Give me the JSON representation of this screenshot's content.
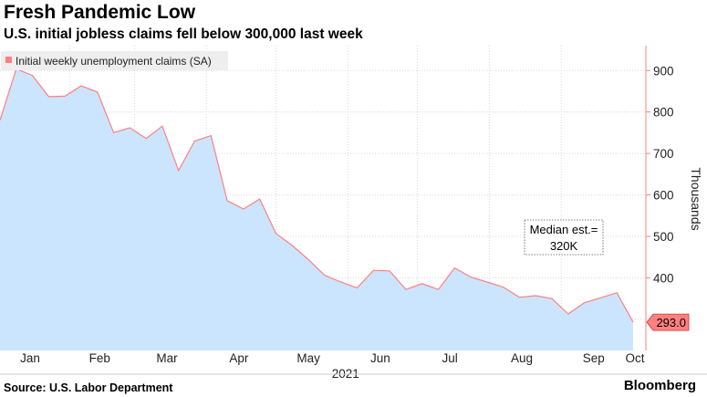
{
  "header": {
    "title": "Fresh Pandemic Low",
    "subtitle": "U.S. initial jobless claims fell below 300,000 last week"
  },
  "footer": {
    "source": "Source: U.S. Labor Department",
    "brand": "Bloomberg"
  },
  "chart_data": {
    "type": "area",
    "series": [
      {
        "name": "Initial weekly unemployment claims (SA)",
        "color": "#ff7f7f",
        "fill": "#cce5ff",
        "x": [
          "2021-01-02",
          "2021-01-09",
          "2021-01-16",
          "2021-01-23",
          "2021-01-30",
          "2021-02-06",
          "2021-02-13",
          "2021-02-20",
          "2021-02-27",
          "2021-03-06",
          "2021-03-13",
          "2021-03-20",
          "2021-03-27",
          "2021-04-03",
          "2021-04-10",
          "2021-04-17",
          "2021-04-24",
          "2021-05-01",
          "2021-05-08",
          "2021-05-15",
          "2021-05-22",
          "2021-05-29",
          "2021-06-05",
          "2021-06-12",
          "2021-06-19",
          "2021-06-26",
          "2021-07-03",
          "2021-07-10",
          "2021-07-17",
          "2021-07-24",
          "2021-07-31",
          "2021-08-07",
          "2021-08-14",
          "2021-08-21",
          "2021-08-28",
          "2021-09-04",
          "2021-09-11",
          "2021-09-18",
          "2021-09-25",
          "2021-10-02"
        ],
        "values": [
          780,
          904,
          888,
          837,
          838,
          863,
          848,
          750,
          762,
          736,
          766,
          659,
          730,
          743,
          586,
          566,
          590,
          507,
          478,
          444,
          406,
          390,
          376,
          418,
          417,
          372,
          386,
          372,
          424,
          402,
          390,
          378,
          353,
          357,
          350,
          313,
          340,
          352,
          364,
          293
        ]
      }
    ],
    "end_value_label": "293.0",
    "xlabel": "2021",
    "ylabel": "Thousands",
    "ylim": [
      225,
      960
    ],
    "yticks": [
      400,
      500,
      600,
      700,
      800,
      900
    ],
    "xticks": [
      {
        "label": "Jan",
        "date": "2021-01-15"
      },
      {
        "label": "Feb",
        "date": "2021-02-14"
      },
      {
        "label": "Mar",
        "date": "2021-03-15"
      },
      {
        "label": "Apr",
        "date": "2021-04-15"
      },
      {
        "label": "May",
        "date": "2021-05-15"
      },
      {
        "label": "Jun",
        "date": "2021-06-15"
      },
      {
        "label": "Jul",
        "date": "2021-07-15"
      },
      {
        "label": "Aug",
        "date": "2021-08-15"
      },
      {
        "label": "Sep",
        "date": "2021-09-15"
      },
      {
        "label": "Oct",
        "date": "2021-10-01"
      }
    ],
    "annotation": {
      "line1": "Median est.=",
      "line2": "320K",
      "value": 320
    },
    "legend_position": "top-left",
    "grid": true
  }
}
